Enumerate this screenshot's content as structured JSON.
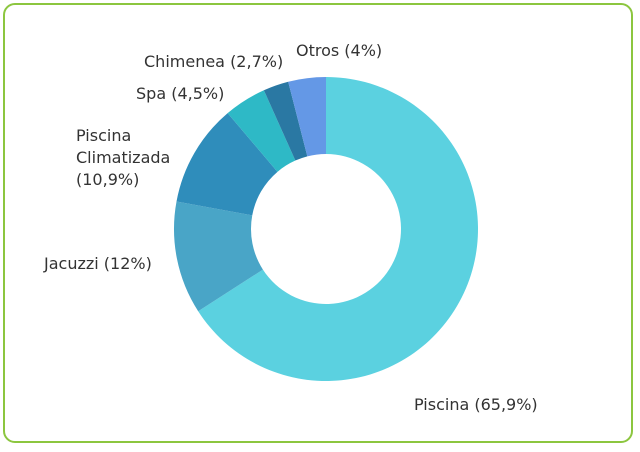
{
  "chart_data": {
    "type": "pie",
    "donut": true,
    "slices": [
      {
        "label": "Piscina",
        "value": 65.9,
        "text": "Piscina (65,9%)",
        "color": "#5bd1e0"
      },
      {
        "label": "Jacuzzi",
        "value": 12,
        "text": "Jacuzzi (12%)",
        "color": "#49a5c7"
      },
      {
        "label": "Piscina Climatizada",
        "value": 10.9,
        "text_lines": [
          "Piscina",
          "Climatizada",
          "(10,9%)"
        ],
        "color": "#2f8dbb"
      },
      {
        "label": "Spa",
        "value": 4.5,
        "text": "Spa (4,5%)",
        "color": "#2eb9c6"
      },
      {
        "label": "Chimenea",
        "value": 2.7,
        "text": "Chimenea (2,7%)",
        "color": "#2a78a3"
      },
      {
        "label": "Otros",
        "value": 4,
        "text": "Otros (4%)",
        "color": "#6498e6"
      }
    ],
    "title": "",
    "legend": "none"
  },
  "colors": {
    "frame_border": "#8cc63f"
  }
}
